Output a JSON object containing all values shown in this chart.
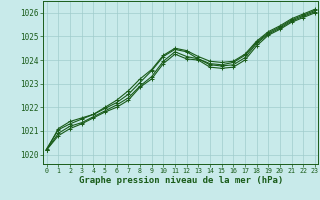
{
  "xlabel": "Graphe pression niveau de la mer (hPa)",
  "background_color": "#c8eaea",
  "grid_color": "#a0cccc",
  "line_color": "#1a5c1a",
  "xlim": [
    -0.3,
    23.3
  ],
  "ylim": [
    1019.6,
    1026.5
  ],
  "yticks": [
    1020,
    1021,
    1022,
    1023,
    1024,
    1025,
    1026
  ],
  "xticks": [
    0,
    1,
    2,
    3,
    4,
    5,
    6,
    7,
    8,
    9,
    10,
    11,
    12,
    13,
    14,
    15,
    16,
    17,
    18,
    19,
    20,
    21,
    22,
    23
  ],
  "series": [
    [
      1020.2,
      1020.8,
      1021.1,
      1021.3,
      1021.55,
      1021.8,
      1022.0,
      1022.3,
      1022.85,
      1023.2,
      1023.85,
      1024.25,
      1024.05,
      1024.0,
      1023.7,
      1023.65,
      1023.7,
      1024.0,
      1024.6,
      1025.05,
      1025.3,
      1025.6,
      1025.8,
      1026.0
    ],
    [
      1020.2,
      1020.9,
      1021.2,
      1021.35,
      1021.6,
      1021.85,
      1022.1,
      1022.4,
      1022.9,
      1023.3,
      1023.95,
      1024.35,
      1024.15,
      1024.05,
      1023.8,
      1023.75,
      1023.8,
      1024.1,
      1024.7,
      1025.1,
      1025.35,
      1025.65,
      1025.85,
      1026.05
    ],
    [
      1020.25,
      1021.05,
      1021.3,
      1021.5,
      1021.7,
      1021.95,
      1022.2,
      1022.55,
      1023.05,
      1023.55,
      1024.15,
      1024.45,
      1024.35,
      1024.05,
      1023.85,
      1023.8,
      1023.9,
      1024.2,
      1024.75,
      1025.15,
      1025.4,
      1025.7,
      1025.9,
      1026.1
    ],
    [
      1020.2,
      1021.1,
      1021.4,
      1021.55,
      1021.7,
      1022.0,
      1022.3,
      1022.7,
      1023.2,
      1023.6,
      1024.2,
      1024.5,
      1024.4,
      1024.15,
      1023.95,
      1023.9,
      1023.95,
      1024.25,
      1024.8,
      1025.2,
      1025.45,
      1025.75,
      1025.95,
      1026.15
    ]
  ],
  "marker": "+",
  "markersize": 3,
  "linewidth": 0.8,
  "xlabel_color": "#1a5c1a",
  "tick_color": "#1a5c1a",
  "xlabel_fontsize": 6.5,
  "ytick_fontsize": 5.5,
  "xtick_fontsize": 4.8
}
